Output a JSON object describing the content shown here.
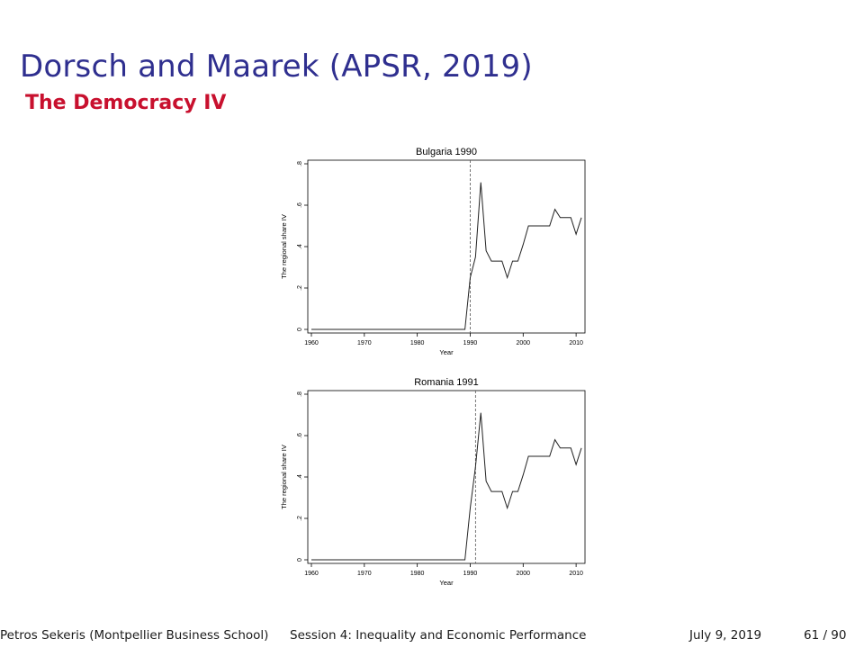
{
  "slide": {
    "title": "Dorsch and Maarek (APSR, 2019)",
    "subtitle": "The Democracy IV"
  },
  "footer": {
    "author": "Petros Sekeris  (Montpellier Business School)",
    "session": "Session 4: Inequality and Economic Performance",
    "date": "July 9, 2019",
    "page": "61 / 90"
  },
  "chart_data": [
    {
      "type": "line",
      "title": "Bulgaria 1990",
      "xlabel": "Year",
      "ylabel": "The regional share IV",
      "xlim": [
        1960,
        2011
      ],
      "ylim": [
        0,
        0.8
      ],
      "xticks": [
        1960,
        1970,
        1980,
        1990,
        2000,
        2010
      ],
      "xtick_labels": [
        "1960",
        "1970",
        "1980",
        "1990",
        "2000",
        "2010"
      ],
      "yticks": [
        0,
        0.2,
        0.4,
        0.6,
        0.8
      ],
      "ytick_labels": [
        "0",
        ".2",
        ".4",
        ".6",
        ".8"
      ],
      "vline_x": 1990,
      "grid": false,
      "legend": "none",
      "series": [
        {
          "x": [
            1960,
            1961,
            1962,
            1963,
            1964,
            1965,
            1966,
            1967,
            1968,
            1969,
            1970,
            1971,
            1972,
            1973,
            1974,
            1975,
            1976,
            1977,
            1978,
            1979,
            1980,
            1981,
            1982,
            1983,
            1984,
            1985,
            1986,
            1987,
            1988,
            1989,
            1990,
            1991,
            1992,
            1993,
            1994,
            1995,
            1996,
            1997,
            1998,
            1999,
            2000,
            2001,
            2002,
            2003,
            2004,
            2005,
            2006,
            2007,
            2008,
            2009,
            2010,
            2011
          ],
          "y": [
            0,
            0,
            0,
            0,
            0,
            0,
            0,
            0,
            0,
            0,
            0,
            0,
            0,
            0,
            0,
            0,
            0,
            0,
            0,
            0,
            0,
            0,
            0,
            0,
            0,
            0,
            0,
            0,
            0,
            0,
            0.25,
            0.35,
            0.71,
            0.38,
            0.33,
            0.33,
            0.33,
            0.25,
            0.33,
            0.33,
            0.41,
            0.5,
            0.5,
            0.5,
            0.5,
            0.5,
            0.58,
            0.54,
            0.54,
            0.54,
            0.46,
            0.54
          ]
        }
      ]
    },
    {
      "type": "line",
      "title": "Romania 1991",
      "xlabel": "Year",
      "ylabel": "The regional share IV",
      "xlim": [
        1960,
        2011
      ],
      "ylim": [
        0,
        0.8
      ],
      "xticks": [
        1960,
        1970,
        1980,
        1990,
        2000,
        2010
      ],
      "xtick_labels": [
        "1960",
        "1970",
        "1980",
        "1990",
        "2000",
        "2010"
      ],
      "yticks": [
        0,
        0.2,
        0.4,
        0.6,
        0.8
      ],
      "ytick_labels": [
        "0",
        ".2",
        ".4",
        ".6",
        ".8"
      ],
      "vline_x": 1991,
      "grid": false,
      "legend": "none",
      "series": [
        {
          "x": [
            1960,
            1961,
            1962,
            1963,
            1964,
            1965,
            1966,
            1967,
            1968,
            1969,
            1970,
            1971,
            1972,
            1973,
            1974,
            1975,
            1976,
            1977,
            1978,
            1979,
            1980,
            1981,
            1982,
            1983,
            1984,
            1985,
            1986,
            1987,
            1988,
            1989,
            1990,
            1991,
            1992,
            1993,
            1994,
            1995,
            1996,
            1997,
            1998,
            1999,
            2000,
            2001,
            2002,
            2003,
            2004,
            2005,
            2006,
            2007,
            2008,
            2009,
            2010,
            2011
          ],
          "y": [
            0,
            0,
            0,
            0,
            0,
            0,
            0,
            0,
            0,
            0,
            0,
            0,
            0,
            0,
            0,
            0,
            0,
            0,
            0,
            0,
            0,
            0,
            0,
            0,
            0,
            0,
            0,
            0,
            0,
            0,
            0.25,
            0.45,
            0.71,
            0.38,
            0.33,
            0.33,
            0.33,
            0.25,
            0.33,
            0.33,
            0.41,
            0.5,
            0.5,
            0.5,
            0.5,
            0.5,
            0.58,
            0.54,
            0.54,
            0.54,
            0.46,
            0.54
          ]
        }
      ]
    }
  ]
}
